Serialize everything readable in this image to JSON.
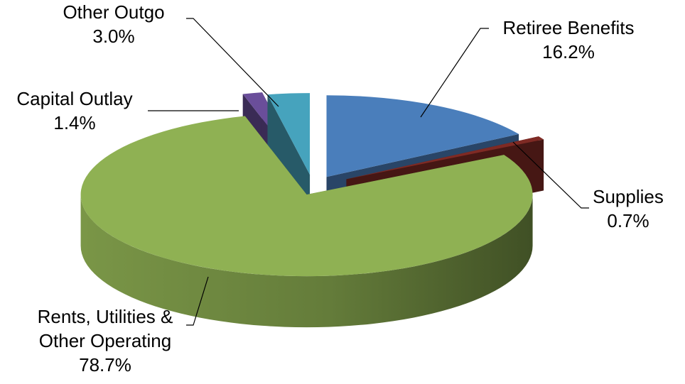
{
  "chart_data": {
    "type": "pie",
    "style": "3d-exploded",
    "title": "",
    "legend": "none",
    "slices": [
      {
        "name": "Retiree Benefits",
        "value": 16.2,
        "value_label": "16.2%",
        "color": "#4a7ebb"
      },
      {
        "name": "Supplies",
        "value": 0.7,
        "value_label": "0.7%",
        "color": "#7f2a24"
      },
      {
        "name": "Rents, Utilities & Other Operating",
        "name_lines": [
          "Rents, Utilities &",
          "Other Operating"
        ],
        "value": 78.7,
        "value_label": "78.7%",
        "color": "#8fb153"
      },
      {
        "name": "Capital Outlay",
        "value": 1.4,
        "value_label": "1.4%",
        "color": "#6a4e9a"
      },
      {
        "name": "Other Outgo",
        "value": 3.0,
        "value_label": "3.0%",
        "color": "#46a3bd"
      }
    ]
  }
}
